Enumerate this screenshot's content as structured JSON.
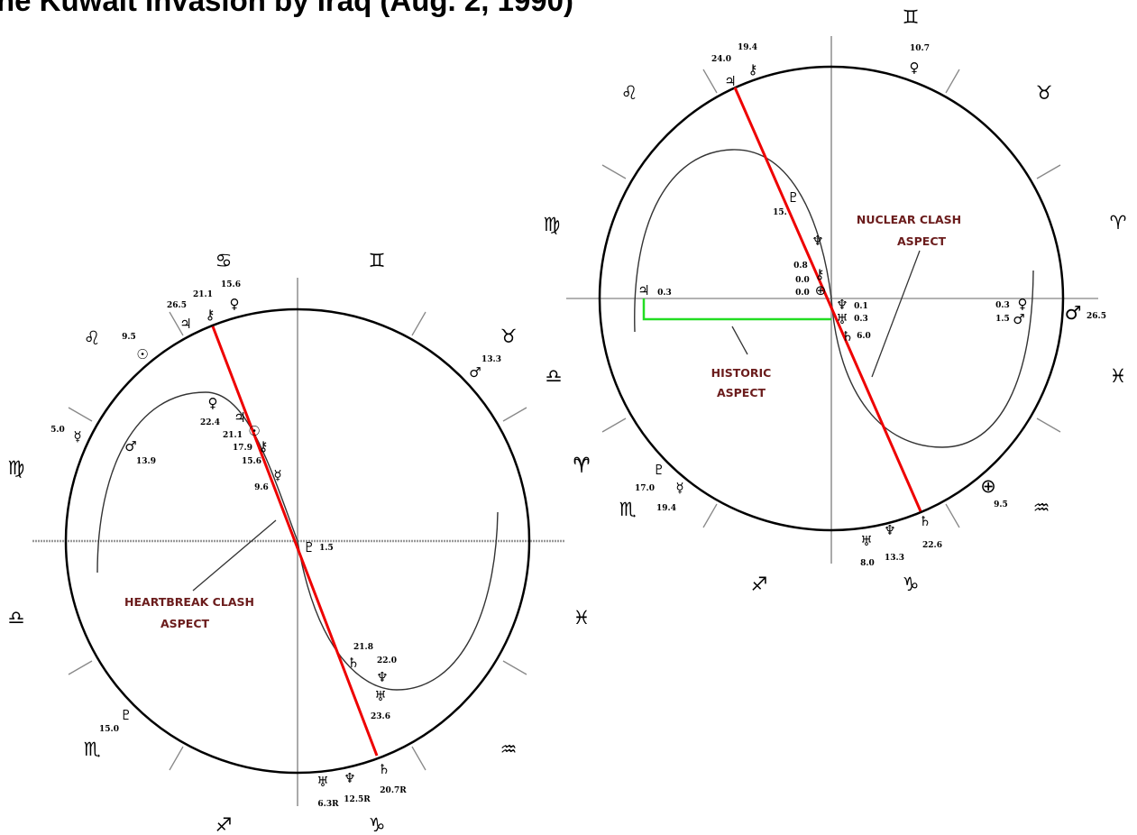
{
  "title": "he Kuwait Invasion by Iraq (Aug. 2, 1990)",
  "colors": {
    "aspect_line": "#ee0000",
    "historic_bracket": "#22dd22",
    "label": "#6b1c1c"
  },
  "left_chart": {
    "signs": {
      "cancer": "♋",
      "gemini": "♊",
      "leo": "♌",
      "taurus": "♉",
      "virgo": "♍",
      "libra": "♎",
      "aries": "♈",
      "scorpio": "♏",
      "pisces": "♓",
      "aquarius": "♒",
      "sagittarius": "♐",
      "capricorn": "♑"
    },
    "planets": {
      "chiron_top": "⚷",
      "venus_top": "♀",
      "jupiter_top": "♃",
      "sun": "☉",
      "mars_right": "♂",
      "mercury_left": "☿",
      "mars_left": "♂",
      "venus_in": "♀",
      "jupiter_in": "♃",
      "sun_in": "☉",
      "chiron_in": "⚷",
      "mercury_in": "☿",
      "pluto_center": "♇",
      "saturn_in": "♄",
      "neptune_in": "♆",
      "uranus_in": "♅",
      "pluto_left": "♇",
      "uranus_bottom": "♅",
      "neptune_bottom": "♆",
      "saturn_bottom": "♄"
    },
    "degrees": {
      "d26_5": "26.5",
      "d21_1": "21.1",
      "d15_6": "15.6",
      "d9_5": "9.5",
      "d13_3": "13.3",
      "d5_0": "5.0",
      "d13_9": "13.9",
      "d22_4": "22.4",
      "d21_1b": "21.1",
      "d17_9": "17.9",
      "d15_6b": "15.6",
      "d9_6": "9.6",
      "d1_5": "1.5",
      "d21_8": "21.8",
      "d22_0": "22.0",
      "d23_6": "23.6",
      "d15_0": "15.0",
      "d6_3r": "6.3R",
      "d12_5r": "12.5R",
      "d20_7r": "20.7R"
    },
    "label_line1": "HEARTBREAK CLASH",
    "label_line2": "ASPECT"
  },
  "right_chart": {
    "signs": {
      "gemini": "♊",
      "leo": "♌",
      "taurus": "♉",
      "virgo": "♍",
      "aries_r": "♈",
      "libra": "♎",
      "pisces": "♓",
      "aries_l": "♈",
      "scorpio": "♏",
      "aquarius": "♒",
      "sagittarius": "♐",
      "capricorn": "♑"
    },
    "planets": {
      "jupiter_top": "♃",
      "chiron_top": "⚷",
      "venus_top": "♀",
      "pluto_in": "♇",
      "neptune_in": "♆",
      "chiron_in": "⚷",
      "earth_in": "⊕",
      "jupiter_left": "♃",
      "neptune_c": "♆",
      "uranus_c": "♅",
      "saturn_c": "♄",
      "venus_r": "♀",
      "mars_r": "♂",
      "mars_outer": "♂",
      "pluto_out": "♇",
      "mercury_out": "☿",
      "earth_out": "⊕",
      "uranus_bottom": "♅",
      "neptune_bottom": "♆",
      "saturn_bottom": "♄"
    },
    "degrees": {
      "d24_0": "24.0",
      "d19_4": "19.4",
      "d10_7": "10.7",
      "d15_x": "15.",
      "d0_8": "0.8",
      "d0_0a": "0.0",
      "d0_0b": "0.0",
      "d0_3l": "0.3",
      "d0_1": "0.1",
      "d0_3c": "0.3",
      "d6_0": "6.0",
      "d0_3r": "0.3",
      "d1_5": "1.5",
      "d26_5": "26.5",
      "d17_0": "17.0",
      "d19_4b": "19.4",
      "d9_5": "9.5",
      "d8_0": "8.0",
      "d13_3": "13.3",
      "d22_6": "22.6"
    },
    "nuclear_line1": "NUCLEAR CLASH",
    "nuclear_line2": "ASPECT",
    "historic_line1": "HISTORIC",
    "historic_line2": "ASPECT"
  }
}
